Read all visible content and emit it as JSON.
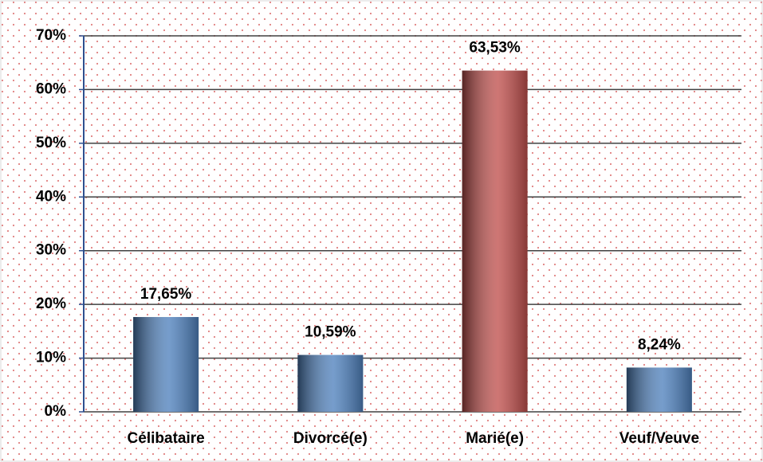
{
  "chart_data": {
    "type": "bar",
    "categories": [
      "Célibataire",
      "Divorcé(e)",
      "Marié(e)",
      "Veuf/Veuve"
    ],
    "values": [
      17.65,
      10.59,
      63.53,
      8.24
    ],
    "value_labels": [
      "17,65%",
      "10,59%",
      "63,53%",
      "8,24%"
    ],
    "colors": [
      "#4f81bd",
      "#4f81bd",
      "#c0504d",
      "#4f81bd"
    ],
    "ylim": [
      0,
      70
    ],
    "yticks": [
      {
        "value": 0,
        "label": "0%"
      },
      {
        "value": 10,
        "label": "10%"
      },
      {
        "value": 20,
        "label": "20%"
      },
      {
        "value": 30,
        "label": "30%"
      },
      {
        "value": 40,
        "label": "40%"
      },
      {
        "value": 50,
        "label": "50%"
      },
      {
        "value": 60,
        "label": "60%"
      },
      {
        "value": 70,
        "label": "70%"
      }
    ],
    "grid": true
  }
}
